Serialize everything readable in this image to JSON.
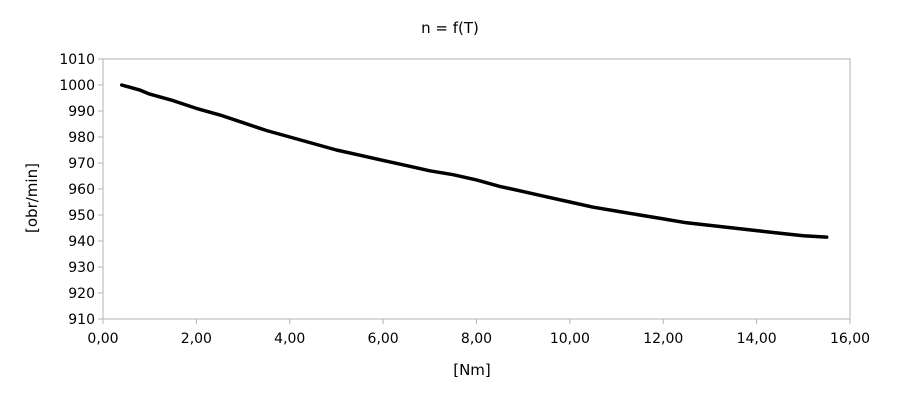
{
  "chart_data": {
    "type": "line",
    "title": "n = f(T)",
    "xlabel": "[Nm]",
    "ylabel": "[obr/min]",
    "xlim": [
      0,
      16
    ],
    "ylim": [
      910,
      1010
    ],
    "x_ticks": [
      0,
      2,
      4,
      6,
      8,
      10,
      12,
      14,
      16
    ],
    "y_ticks": [
      910,
      920,
      930,
      940,
      950,
      960,
      970,
      980,
      990,
      1000,
      1010
    ],
    "x_tick_labels": [
      "0,00",
      "2,00",
      "4,00",
      "6,00",
      "8,00",
      "10,00",
      "12,00",
      "14,00",
      "16,00"
    ],
    "y_tick_labels": [
      "910",
      "920",
      "930",
      "940",
      "950",
      "960",
      "970",
      "980",
      "990",
      "1000",
      "1010"
    ],
    "grid": false,
    "legend": "none",
    "series": [
      {
        "color": "#000000",
        "x": [
          0.4,
          0.6,
          0.8,
          1.0,
          1.5,
          2.0,
          2.5,
          3.0,
          3.5,
          4.0,
          4.5,
          5.0,
          5.5,
          6.0,
          6.5,
          7.0,
          7.5,
          8.0,
          8.5,
          9.0,
          9.5,
          10.0,
          10.5,
          11.0,
          11.5,
          12.0,
          12.5,
          13.0,
          13.5,
          14.0,
          14.5,
          15.0,
          15.5
        ],
        "y": [
          1000,
          999,
          998,
          996.5,
          994,
          991,
          988.5,
          985.5,
          982.5,
          980,
          977.5,
          975,
          973,
          971,
          969,
          967,
          965.5,
          963.5,
          961,
          959,
          957,
          955,
          953,
          951.5,
          950,
          948.5,
          947,
          946,
          945,
          944,
          943,
          942,
          941.5
        ]
      }
    ]
  }
}
